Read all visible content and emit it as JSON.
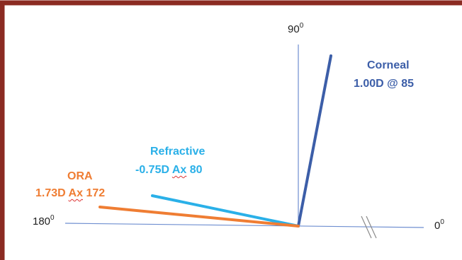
{
  "axis_labels": {
    "top": {
      "base": "90",
      "sup": "0"
    },
    "left": {
      "base": "180",
      "sup": "0"
    },
    "right": {
      "base": "0",
      "sup": "0"
    }
  },
  "measurements": [
    {
      "key": "corneal",
      "name": "Corneal",
      "value_prefix": "1.00D @ 85",
      "value_word": "",
      "value_suffix": "",
      "axis_deg": 85,
      "color": "#3c5ea8"
    },
    {
      "key": "refractive",
      "name": "Refractive",
      "value_prefix": "-0.75D ",
      "value_word": "Ax",
      "value_suffix": " 80",
      "axis_deg": 80,
      "color": "#2ab0e8"
    },
    {
      "key": "ora",
      "name": "ORA",
      "value_prefix": "1.73D ",
      "value_word": "Ax",
      "value_suffix": " 172",
      "axis_deg": 172,
      "color": "#ef7d33"
    }
  ],
  "colors": {
    "frame": "#8b2b22",
    "axis": "#6e8ed0",
    "axis_break": "#8a8a8a"
  }
}
